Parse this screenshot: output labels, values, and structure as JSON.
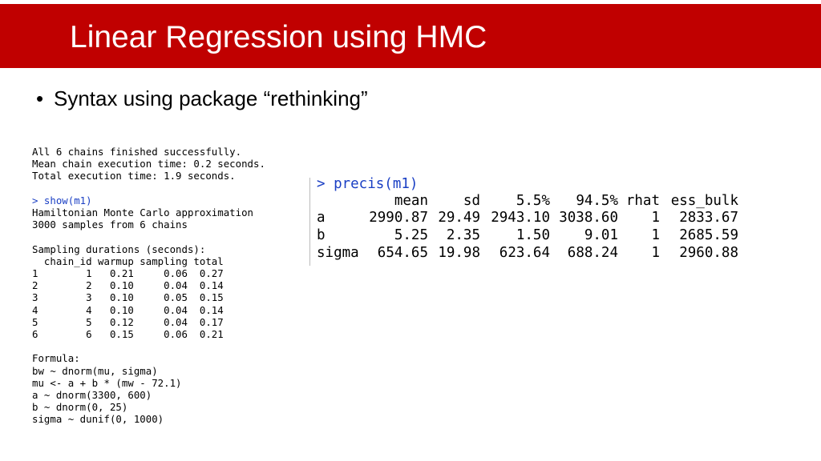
{
  "header": {
    "title": "Linear Regression using HMC"
  },
  "bullet": "Syntax using package “rethinking”",
  "console_left": {
    "status": [
      "All 6 chains finished successfully.",
      "Mean chain execution time: 0.2 seconds.",
      "Total execution time: 1.9 seconds."
    ],
    "command": "> show(m1)",
    "info": [
      "Hamiltonian Monte Carlo approximation",
      "3000 samples from 6 chains"
    ],
    "sampling": {
      "title": "Sampling durations (seconds):",
      "header": "  chain_id warmup sampling total",
      "rows": [
        "1        1   0.21     0.06  0.27",
        "2        2   0.10     0.04  0.14",
        "3        3   0.10     0.05  0.15",
        "4        4   0.10     0.04  0.14",
        "5        5   0.12     0.04  0.17",
        "6        6   0.15     0.06  0.21"
      ]
    },
    "formula": {
      "title": "Formula:",
      "lines": [
        "bw ~ dnorm(mu, sigma)",
        "mu <- a + b * (mw - 72.1)",
        "a ~ dnorm(3300, 600)",
        "b ~ dnorm(0, 25)",
        "sigma ~ dunif(0, 1000)"
      ]
    }
  },
  "console_right": {
    "command": "> precis(m1)",
    "table": {
      "columns": [
        "mean",
        "sd",
        "5.5%",
        "94.5%",
        "rhat",
        "ess_bulk"
      ],
      "rows": [
        {
          "label": "a",
          "cells": [
            "2990.87",
            "29.49",
            "2943.10",
            "3038.60",
            "1",
            "2833.67"
          ]
        },
        {
          "label": "b",
          "cells": [
            "5.25",
            "2.35",
            "1.50",
            "9.01",
            "1",
            "2685.59"
          ]
        },
        {
          "label": "sigma",
          "cells": [
            "654.65",
            "19.98",
            "623.64",
            "688.24",
            "1",
            "2960.88"
          ]
        }
      ]
    }
  }
}
